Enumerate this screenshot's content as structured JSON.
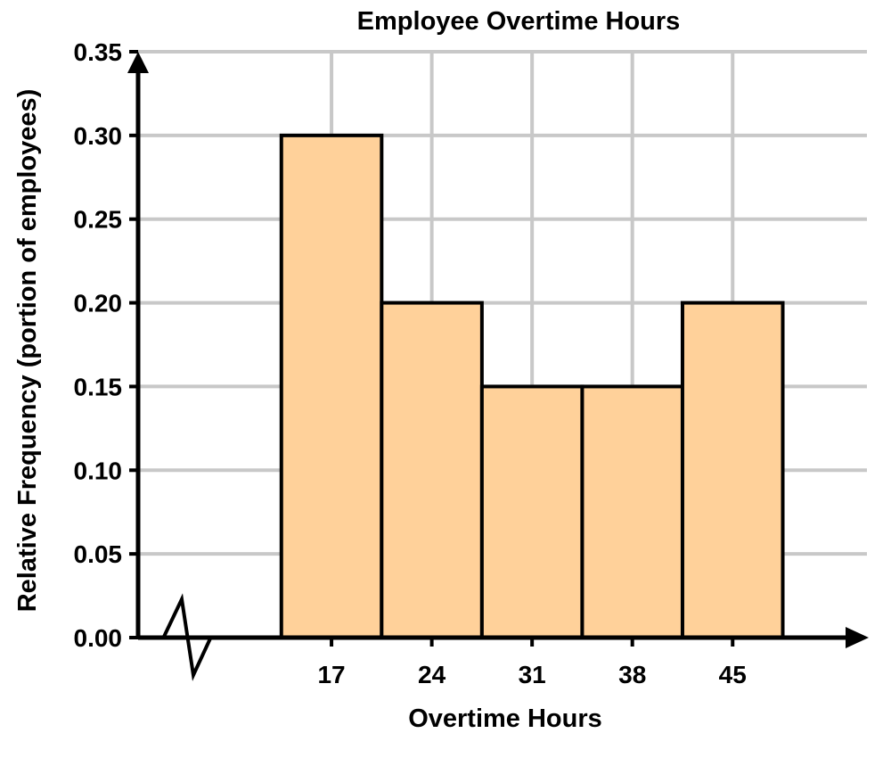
{
  "chart_data": {
    "type": "bar",
    "title": "Employee Overtime Hours",
    "xlabel": "Overtime Hours",
    "ylabel": "Relative Frequency (portion of employees)",
    "categories": [
      "17",
      "24",
      "31",
      "38",
      "45"
    ],
    "values": [
      0.3,
      0.2,
      0.15,
      0.15,
      0.2
    ],
    "bar_width_units": 7,
    "xlim": [
      3.5,
      54.5
    ],
    "ylim": [
      0,
      0.35
    ],
    "yticks": [
      "0.00",
      "0.05",
      "0.10",
      "0.15",
      "0.20",
      "0.25",
      "0.30",
      "0.35"
    ],
    "grid": true,
    "axis_break": "x",
    "colors": {
      "bar_fill": "#FFD19A",
      "bar_stroke": "#000000",
      "grid": "#C8C8C8"
    }
  }
}
